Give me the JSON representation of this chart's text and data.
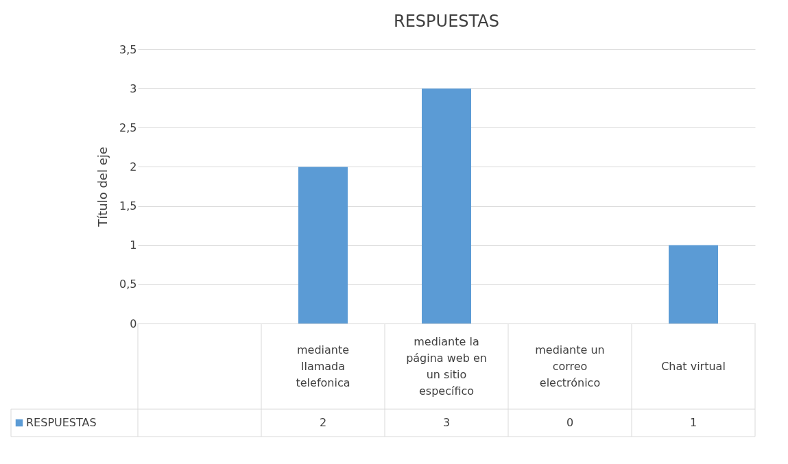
{
  "chart_data": {
    "type": "bar",
    "title": "RESPUESTAS",
    "ylabel": "Título del eje",
    "categories": [
      null,
      "mediante llamada telefonica",
      "mediante la página web en un sitio específico",
      "mediante un correo electrónico",
      "Chat virtual"
    ],
    "series": [
      {
        "name": "RESPUESTAS",
        "color": "#5b9bd5",
        "values": [
          null,
          2,
          3,
          0,
          1
        ],
        "value_labels": [
          null,
          "2",
          "3",
          "0",
          "1"
        ]
      }
    ],
    "ylim": [
      0,
      3.5
    ],
    "yticks": [
      0,
      {
        "value": 0.5,
        "label": "0,5"
      },
      1,
      {
        "value": 1.5,
        "label": "1,5"
      },
      2,
      {
        "value": 2.5,
        "label": "2,5"
      },
      3,
      {
        "value": 3.5,
        "label": "3,5"
      }
    ],
    "grid": "y",
    "legend": "bottom left"
  }
}
